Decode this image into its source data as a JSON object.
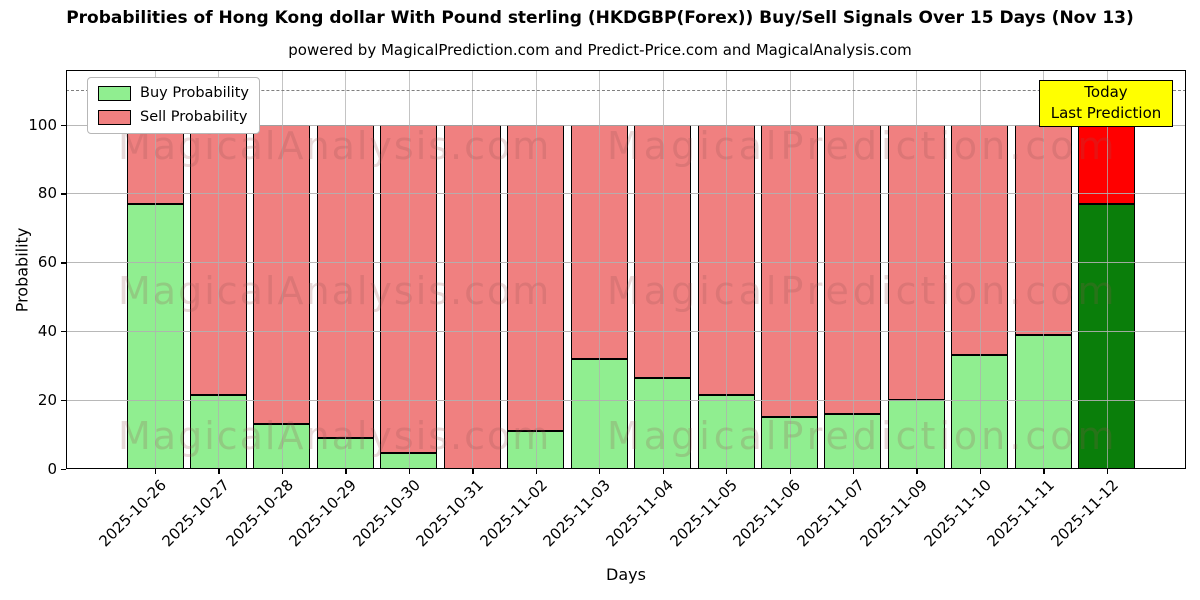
{
  "chart_data": {
    "type": "bar",
    "stacked": true,
    "title": "Probabilities of Hong Kong dollar With Pound sterling (HKDGBP(Forex)) Buy/Sell Signals Over 15 Days (Nov 13)",
    "subtitle": "powered by MagicalPrediction.com and Predict-Price.com and MagicalAnalysis.com",
    "xlabel": "Days",
    "ylabel": "Probability",
    "ylim": [
      0,
      115.8
    ],
    "yticks": [
      0,
      20,
      40,
      60,
      80,
      100
    ],
    "grid": true,
    "legend_position": "upper left",
    "categories": [
      "2025-10-26",
      "2025-10-27",
      "2025-10-28",
      "2025-10-29",
      "2025-10-30",
      "2025-10-31",
      "2025-11-02",
      "2025-11-03",
      "2025-11-04",
      "2025-11-05",
      "2025-11-06",
      "2025-11-07",
      "2025-11-09",
      "2025-11-10",
      "2025-11-11",
      "2025-11-12"
    ],
    "series": [
      {
        "name": "Buy Probability",
        "color": "#90ee90",
        "values": [
          77,
          21.5,
          13,
          9,
          4.5,
          0,
          11,
          32,
          26.5,
          21.5,
          15,
          16,
          20,
          33,
          39,
          77
        ]
      },
      {
        "name": "Sell Probability",
        "color": "#f08080",
        "values": [
          23,
          78.5,
          87,
          91,
          95.5,
          100,
          89,
          68,
          73.5,
          78.5,
          85,
          84,
          80,
          67,
          61,
          23
        ]
      }
    ],
    "last_bar": {
      "category": "2025-11-12",
      "buy_color": "#0a7e0a",
      "sell_color": "#ff0000"
    },
    "edge_color": "#000000",
    "dashed_line_y": 110,
    "annotation": {
      "lines": [
        "Today",
        "Last Prediction"
      ],
      "bg_color": "#ffff00"
    },
    "watermarks": [
      "MagicalAnalysis.com",
      "MagicalPrediction.com"
    ]
  }
}
